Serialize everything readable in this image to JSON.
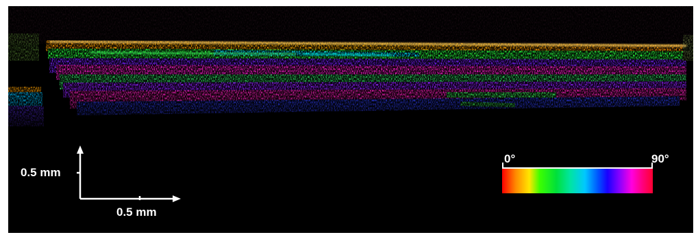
{
  "image": {
    "kind": "polarization-sensitive OCT cross-section",
    "background_color": "#000000",
    "colormap_stops": [
      "#ff0000",
      "#ff8a00",
      "#ffe600",
      "#3cff00",
      "#00e03a",
      "#00e5a0",
      "#00c8ff",
      "#0050ff",
      "#1a00ff",
      "#8a00ff",
      "#ff00e0",
      "#ff0080",
      "#ff0030"
    ]
  },
  "scale_bar": {
    "vertical_label": "0.5 mm",
    "horizontal_label": "0.5 mm",
    "color": "#ffffff"
  },
  "colorbar": {
    "min_label": "0°",
    "max_label": "90°"
  }
}
